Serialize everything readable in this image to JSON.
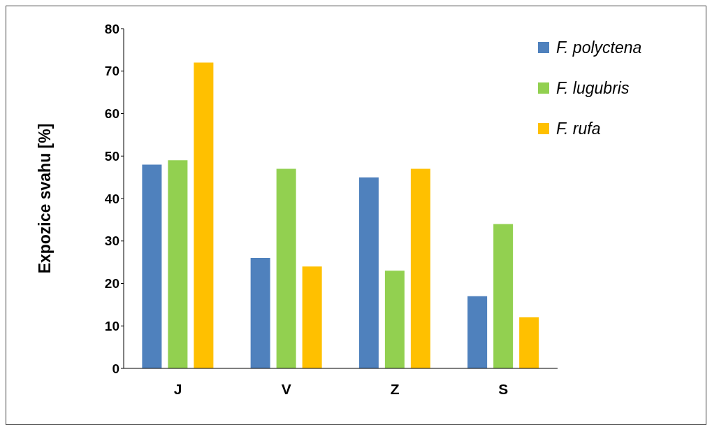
{
  "chart_data": {
    "type": "bar",
    "ylabel": "Expozice  svahu [%]",
    "categories": [
      "J",
      "V",
      "Z",
      "S"
    ],
    "series": [
      {
        "name": "F. polyctena",
        "color": "#4f81bd",
        "values": [
          48,
          26,
          45,
          17
        ]
      },
      {
        "name": "F. lugubris",
        "color": "#92d050",
        "values": [
          49,
          47,
          23,
          34
        ]
      },
      {
        "name": "F. rufa",
        "color": "#ffc000",
        "values": [
          72,
          24,
          47,
          12
        ]
      }
    ],
    "ylim": [
      0,
      80
    ],
    "yticks": [
      0,
      10,
      20,
      30,
      40,
      50,
      60,
      70,
      80
    ],
    "grid": false,
    "legend": "top right"
  }
}
